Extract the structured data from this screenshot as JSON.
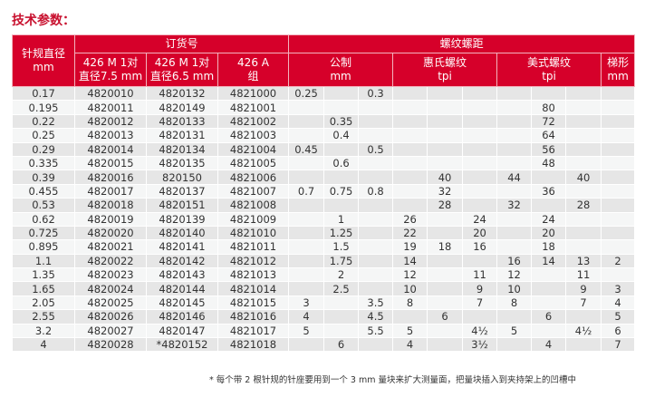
{
  "title": "技术参数：",
  "header": {
    "gauge": "针规直径",
    "gauge_unit": "mm",
    "order": "订货号",
    "order_cols": [
      {
        "l1": "426 M 1对",
        "l2": "直径7.5 mm"
      },
      {
        "l1": "426 M 1对",
        "l2": "直径6.5 mm"
      },
      {
        "l1": "426 A",
        "l2": "组"
      }
    ],
    "pitch": "螺纹螺距",
    "pitch_groups": [
      {
        "l1": "公制",
        "l2": "mm"
      },
      {
        "l1": "惠氏螺纹",
        "l2": "tpi"
      },
      {
        "l1": "美式螺纹",
        "l2": "tpi"
      },
      {
        "l1": "梯形",
        "l2": "mm"
      }
    ]
  },
  "rows": [
    [
      "0.17",
      "4820010",
      "4820132",
      "4821000",
      "0.25",
      "",
      "0.3",
      "",
      "",
      "",
      "",
      "",
      "",
      ""
    ],
    [
      "0.195",
      "4820011",
      "4820149",
      "4821001",
      "",
      "",
      "",
      "",
      "",
      "",
      "",
      "80",
      "",
      ""
    ],
    [
      "0.22",
      "4820012",
      "4820133",
      "4821002",
      "",
      "0.35",
      "",
      "",
      "",
      "",
      "",
      "72",
      "",
      ""
    ],
    [
      "0.25",
      "4820013",
      "4820131",
      "4821003",
      "",
      "0.4",
      "",
      "",
      "",
      "",
      "",
      "64",
      "",
      ""
    ],
    [
      "0.29",
      "4820014",
      "4820134",
      "4821004",
      "0.45",
      "",
      "0.5",
      "",
      "",
      "",
      "",
      "56",
      "",
      ""
    ],
    [
      "0.335",
      "4820015",
      "4820135",
      "4821005",
      "",
      "0.6",
      "",
      "",
      "",
      "",
      "",
      "48",
      "",
      ""
    ],
    [
      "0.39",
      "4820016",
      "820150",
      "4821006",
      "",
      "",
      "",
      "",
      "40",
      "",
      "44",
      "",
      "40",
      ""
    ],
    [
      "0.455",
      "4820017",
      "4820137",
      "4821007",
      "0.7",
      "0.75",
      "0.8",
      "",
      "32",
      "",
      "",
      "36",
      "",
      ""
    ],
    [
      "0.53",
      "4820018",
      "4820151",
      "4821008",
      "",
      "",
      "",
      "",
      "28",
      "",
      "32",
      "",
      "28",
      ""
    ],
    [
      "0.62",
      "4820019",
      "4820139",
      "4821009",
      "",
      "1",
      "",
      "26",
      "",
      "24",
      "",
      "24",
      "",
      ""
    ],
    [
      "0.725",
      "4820020",
      "4820140",
      "4821010",
      "",
      "1.25",
      "",
      "22",
      "",
      "20",
      "",
      "20",
      "",
      ""
    ],
    [
      "0.895",
      "4820021",
      "4820141",
      "4821011",
      "",
      "1.5",
      "",
      "19",
      "18",
      "16",
      "",
      "18",
      "",
      ""
    ],
    [
      "1.1",
      "4820022",
      "4820142",
      "4821012",
      "",
      "1.75",
      "",
      "14",
      "",
      "",
      "16",
      "14",
      "13",
      "2"
    ],
    [
      "1.35",
      "4820023",
      "4820143",
      "4821013",
      "",
      "2",
      "",
      "12",
      "",
      "11",
      "12",
      "",
      "11",
      ""
    ],
    [
      "1.65",
      "4820024",
      "4820144",
      "4821014",
      "",
      "2.5",
      "",
      "10",
      "",
      "9",
      "10",
      "",
      "9",
      "3"
    ],
    [
      "2.05",
      "4820025",
      "4820145",
      "4821015",
      "3",
      "",
      "3.5",
      "8",
      "",
      "7",
      "8",
      "",
      "7",
      "4"
    ],
    [
      "2.55",
      "4820026",
      "4820146",
      "4821016",
      "4",
      "",
      "4.5",
      "",
      "6",
      "",
      "",
      "6",
      "",
      "5"
    ],
    [
      "3.2",
      "4820027",
      "4820147",
      "4821017",
      "5",
      "",
      "5.5",
      "5",
      "",
      "4½",
      "5",
      "",
      "4½",
      "6"
    ],
    [
      "4",
      "4820028",
      "*4820152",
      "4821018",
      "",
      "6",
      "",
      "4",
      "",
      "3½",
      "",
      "4",
      "",
      "7"
    ]
  ],
  "footnote": "* 每个带 2 根针规的针座要用到一个 3 mm 量块来扩大测量面，把量块插入到夹持架上的凹槽中",
  "colors": {
    "header": "#d6002a",
    "row_odd": "#e6e6e6",
    "row_even": "#f5f6f6",
    "title": "#c8102e"
  }
}
